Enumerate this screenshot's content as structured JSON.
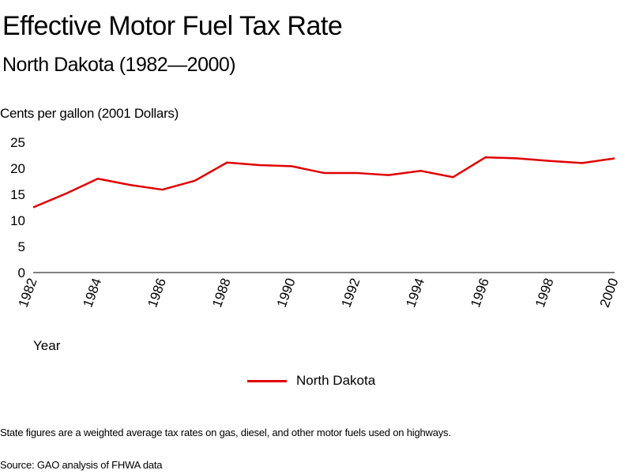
{
  "title": "Effective Motor Fuel Tax Rate",
  "subtitle": "North Dakota (1982—2000)",
  "note": "State figures are a weighted average tax rates on gas, diesel, and other motor fuels used on highways.",
  "source": "Source: GAO analysis of FHWA data",
  "chart_data": {
    "type": "line",
    "ylabel": "Cents per gallon (2001 Dollars)",
    "xlabel": "Year",
    "ylim": [
      0,
      25
    ],
    "yticks": [
      "0",
      "5",
      "10",
      "15",
      "20",
      "25"
    ],
    "xticks": [
      "1982",
      "1984",
      "1986",
      "1988",
      "1990",
      "1992",
      "1994",
      "1996",
      "1998",
      "2000"
    ],
    "x": [
      1982,
      1983,
      1984,
      1985,
      1986,
      1987,
      1988,
      1989,
      1990,
      1991,
      1992,
      1993,
      1994,
      1995,
      1996,
      1997,
      1998,
      1999,
      2000
    ],
    "series": [
      {
        "name": "North Dakota",
        "color": "#e00000",
        "values": [
          12.5,
          15.1,
          18.0,
          16.8,
          15.9,
          17.6,
          21.1,
          20.6,
          20.4,
          19.1,
          19.1,
          18.7,
          19.5,
          18.3,
          22.1,
          21.9,
          21.4,
          21.0,
          21.9
        ]
      }
    ],
    "grid": false,
    "legend_position": "bottom-center"
  }
}
